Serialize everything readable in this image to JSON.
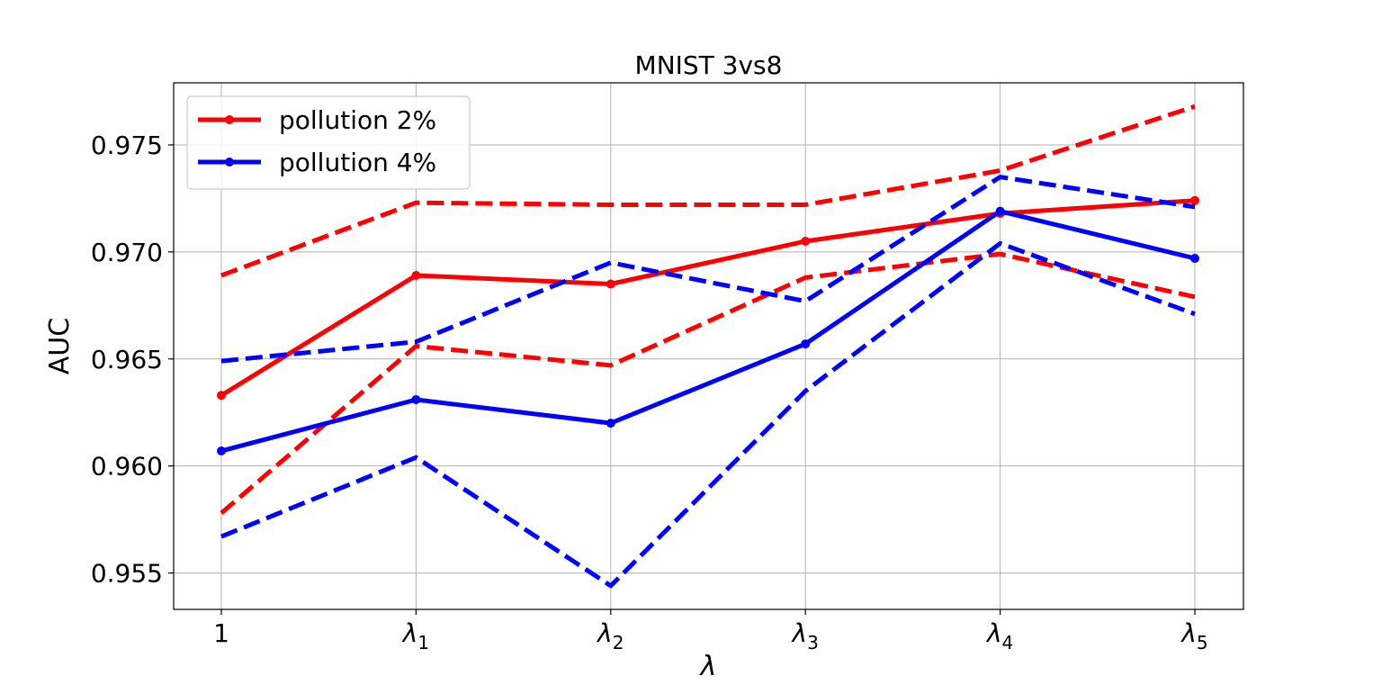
{
  "chart_data": {
    "type": "line",
    "title": "MNIST 3vs8",
    "xlabel": "λ",
    "ylabel": "AUC",
    "categories": [
      "1",
      "λ1",
      "λ2",
      "λ3",
      "λ4",
      "λ5"
    ],
    "category_labels": [
      {
        "base": "1",
        "sub": ""
      },
      {
        "base": "λ",
        "sub": "1"
      },
      {
        "base": "λ",
        "sub": "2"
      },
      {
        "base": "λ",
        "sub": "3"
      },
      {
        "base": "λ",
        "sub": "4"
      },
      {
        "base": "λ",
        "sub": "5"
      }
    ],
    "ylim": [
      0.9533,
      0.9779
    ],
    "yticks": [
      0.955,
      0.96,
      0.965,
      0.97,
      0.975
    ],
    "ytick_labels": [
      "0.955",
      "0.960",
      "0.965",
      "0.970",
      "0.975"
    ],
    "grid": true,
    "legend_position": "top-left",
    "series": [
      {
        "name": "pollution 2%",
        "color": "#ff0000",
        "style": "solid",
        "markers": true,
        "values": [
          0.9633,
          0.9689,
          0.9685,
          0.9705,
          0.9718,
          0.9724
        ]
      },
      {
        "color": "#ff0000",
        "style": "dashed",
        "markers": false,
        "values": [
          0.9689,
          0.9723,
          0.9722,
          0.9722,
          0.9738,
          0.9768
        ]
      },
      {
        "color": "#ff0000",
        "style": "dashed",
        "markers": false,
        "values": [
          0.9578,
          0.9656,
          0.9647,
          0.9688,
          0.9699,
          0.9679
        ]
      },
      {
        "name": "pollution 4%",
        "color": "#0000ff",
        "style": "solid",
        "markers": true,
        "values": [
          0.9607,
          0.9631,
          0.962,
          0.9657,
          0.9719,
          0.9697
        ]
      },
      {
        "color": "#0000ff",
        "style": "dashed",
        "markers": false,
        "values": [
          0.9649,
          0.9658,
          0.9695,
          0.9677,
          0.9735,
          0.9721
        ]
      },
      {
        "color": "#0000ff",
        "style": "dashed",
        "markers": false,
        "values": [
          0.9567,
          0.9604,
          0.9544,
          0.9635,
          0.9704,
          0.9671
        ]
      }
    ]
  }
}
